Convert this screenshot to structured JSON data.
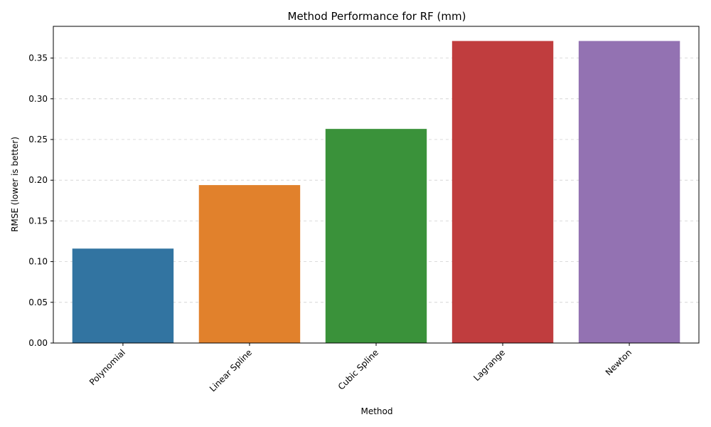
{
  "chart_data": {
    "type": "bar",
    "title": "Method Performance for RF (mm)",
    "xlabel": "Method",
    "ylabel": "RMSE (lower is better)",
    "categories": [
      "Polynomial",
      "Linear Spline",
      "Cubic Spline",
      "Lagrange",
      "Newton"
    ],
    "values": [
      0.116,
      0.194,
      0.263,
      0.371,
      0.371
    ],
    "colors": [
      "#3274a1",
      "#e1812c",
      "#3a923a",
      "#c03d3e",
      "#9372b2"
    ],
    "ylim": [
      0,
      0.389
    ],
    "yticks": [
      "0.00",
      "0.05",
      "0.10",
      "0.15",
      "0.20",
      "0.25",
      "0.30",
      "0.35"
    ],
    "grid": "y-dashed",
    "legend": "none"
  }
}
